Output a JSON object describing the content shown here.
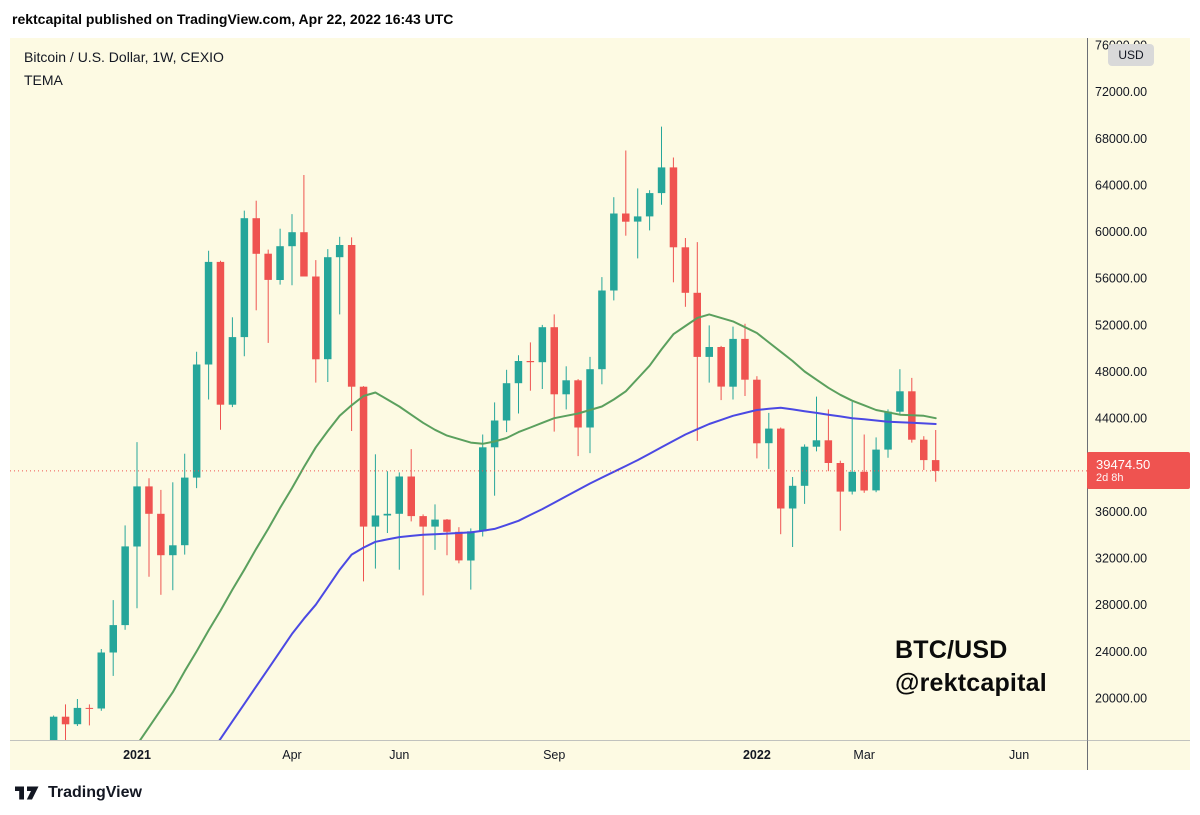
{
  "header": {
    "text": "rektcapital published on TradingView.com, Apr 22, 2022 16:43 UTC"
  },
  "legend": {
    "symbol": "Bitcoin / U.S. Dollar, 1W, CEXIO",
    "indicator": "TEMA"
  },
  "watermark": {
    "line1": "BTC/USD",
    "line2": "@rektcapital"
  },
  "price_axis": {
    "currency": "USD"
  },
  "last_price": {
    "price": "39474.50",
    "countdown": "2d 8h"
  },
  "footer": {
    "brand": "TradingView"
  },
  "colors": {
    "background": "#FDFAE3",
    "up": "#26A69A",
    "down": "#EF5350",
    "text": "#131722",
    "separator": "#6b6e76",
    "axis_line": "#9a9da6",
    "label_red": "#EF5350"
  },
  "chart_data": {
    "type": "candlestick",
    "title": "Bitcoin / U.S. Dollar, 1W, CEXIO",
    "exchange": "CEXIO",
    "timeframe": "1W",
    "indicator": "TEMA",
    "start_week": "2020-11-16",
    "ylim": [
      16400,
      76600
    ],
    "y_ticks": [
      20000,
      24000,
      28000,
      32000,
      36000,
      40000,
      44000,
      48000,
      52000,
      56000,
      60000,
      64000,
      68000,
      72000,
      76000
    ],
    "x_labels": [
      {
        "text": "2021",
        "week": 7,
        "bold": true
      },
      {
        "text": "Apr",
        "week": 20,
        "bold": false
      },
      {
        "text": "Jun",
        "week": 29,
        "bold": false
      },
      {
        "text": "Sep",
        "week": 42,
        "bold": false
      },
      {
        "text": "2022",
        "week": 59,
        "bold": true
      },
      {
        "text": "Mar",
        "week": 68,
        "bold": false
      },
      {
        "text": "Jun",
        "week": 81,
        "bold": false
      }
    ],
    "last_price": {
      "value": 39474.5,
      "display": "39474.50",
      "countdown": "2d 8h"
    },
    "candles": {
      "columns": [
        "open",
        "high",
        "low",
        "close"
      ],
      "rows": [
        [
          15950,
          18500,
          15750,
          18400
        ],
        [
          18400,
          19450,
          16200,
          17750
        ],
        [
          17750,
          19920,
          17600,
          19150
        ],
        [
          19150,
          19450,
          17650,
          19100
        ],
        [
          19100,
          24200,
          18900,
          23900
        ],
        [
          23900,
          28400,
          21900,
          26250
        ],
        [
          26250,
          34800,
          25850,
          33000
        ],
        [
          33000,
          41950,
          27700,
          38150
        ],
        [
          38150,
          38850,
          30400,
          35800
        ],
        [
          35800,
          37850,
          28850,
          32250
        ],
        [
          32250,
          38500,
          29250,
          33100
        ],
        [
          33100,
          40950,
          32300,
          38900
        ],
        [
          38900,
          49700,
          38000,
          48600
        ],
        [
          48600,
          58350,
          45600,
          57400
        ],
        [
          57400,
          57500,
          43000,
          45150
        ],
        [
          45150,
          52650,
          44950,
          50950
        ],
        [
          50950,
          61800,
          49300,
          61150
        ],
        [
          61150,
          62650,
          53250,
          58100
        ],
        [
          58100,
          58450,
          50450,
          55850
        ],
        [
          55850,
          60250,
          55450,
          58750
        ],
        [
          58750,
          61500,
          55400,
          59950
        ],
        [
          59950,
          64850,
          59550,
          56150
        ],
        [
          56150,
          57550,
          47050,
          49050
        ],
        [
          49050,
          58500,
          47100,
          57800
        ],
        [
          57800,
          59550,
          52900,
          58850
        ],
        [
          58850,
          59500,
          42900,
          46700
        ],
        [
          46700,
          46750,
          30000,
          34700
        ],
        [
          34700,
          40900,
          31100,
          35650
        ],
        [
          35650,
          39450,
          34150,
          35800
        ],
        [
          35800,
          39350,
          31000,
          39000
        ],
        [
          39000,
          41350,
          35150,
          35600
        ],
        [
          35600,
          35750,
          28800,
          34700
        ],
        [
          34700,
          36600,
          32700,
          35300
        ],
        [
          35300,
          35350,
          32250,
          34250
        ],
        [
          34250,
          34650,
          31550,
          31800
        ],
        [
          31800,
          34550,
          29300,
          34300
        ],
        [
          34300,
          42600,
          33850,
          41500
        ],
        [
          41500,
          45350,
          37350,
          43800
        ],
        [
          43800,
          48150,
          42800,
          47000
        ],
        [
          47000,
          49400,
          44400,
          48900
        ],
        [
          48900,
          50500,
          46350,
          48800
        ],
        [
          48800,
          52000,
          46500,
          51800
        ],
        [
          51800,
          52900,
          42850,
          46050
        ],
        [
          46050,
          48450,
          44750,
          47250
        ],
        [
          47250,
          47350,
          40750,
          43200
        ],
        [
          43200,
          49250,
          41000,
          48200
        ],
        [
          48200,
          56100,
          46900,
          54950
        ],
        [
          54950,
          62950,
          54100,
          61550
        ],
        [
          61550,
          66950,
          59650,
          60850
        ],
        [
          60850,
          63700,
          57700,
          61300
        ],
        [
          61300,
          63550,
          60100,
          63300
        ],
        [
          63300,
          69000,
          62300,
          65500
        ],
        [
          65500,
          66350,
          55650,
          58650
        ],
        [
          58650,
          59450,
          53550,
          54750
        ],
        [
          54750,
          59100,
          42050,
          49250
        ],
        [
          49250,
          51950,
          47050,
          50100
        ],
        [
          50100,
          50200,
          45550,
          46700
        ],
        [
          46700,
          51850,
          45600,
          50800
        ],
        [
          50800,
          52100,
          45900,
          47300
        ],
        [
          47300,
          47600,
          40550,
          41850
        ],
        [
          41850,
          44450,
          39650,
          43100
        ],
        [
          43100,
          43200,
          34050,
          36250
        ],
        [
          36250,
          38950,
          32950,
          38200
        ],
        [
          38200,
          41750,
          36650,
          41550
        ],
        [
          41550,
          45850,
          41150,
          42100
        ],
        [
          42100,
          44750,
          39450,
          40150
        ],
        [
          40150,
          40350,
          34350,
          37700
        ],
        [
          37700,
          45400,
          37450,
          39400
        ],
        [
          39400,
          42600,
          37600,
          37800
        ],
        [
          37800,
          42350,
          37650,
          41300
        ],
        [
          41300,
          44750,
          40600,
          44550
        ],
        [
          44550,
          48200,
          44250,
          46300
        ],
        [
          46300,
          47450,
          41900,
          42150
        ],
        [
          42150,
          42450,
          39550,
          40400
        ],
        [
          40400,
          42980,
          38550,
          39474.5
        ]
      ]
    },
    "overlays": [
      {
        "name": "tema-green",
        "color": "#5BA05E",
        "values": [
          null,
          null,
          null,
          null,
          null,
          null,
          14500,
          16000,
          17500,
          19000,
          20500,
          22300,
          24000,
          25800,
          27500,
          29300,
          31000,
          32800,
          34500,
          36300,
          38000,
          39800,
          41500,
          42900,
          44200,
          45100,
          45900,
          46200,
          45600,
          45000,
          44300,
          43600,
          43000,
          42500,
          42200,
          41900,
          41800,
          42000,
          42300,
          42800,
          43200,
          43600,
          44000,
          44200,
          44400,
          44700,
          45000,
          45600,
          46300,
          47400,
          48500,
          49900,
          51200,
          51900,
          52600,
          52900,
          52600,
          52300,
          51800,
          51300,
          50500,
          49700,
          48900,
          48000,
          47300,
          46600,
          46000,
          45500,
          45100,
          44700,
          44500,
          44300,
          44250,
          44200,
          44000
        ]
      },
      {
        "name": "tema-blue",
        "color": "#4B49E3",
        "values": [
          null,
          null,
          null,
          null,
          null,
          null,
          null,
          null,
          null,
          null,
          null,
          null,
          13500,
          15000,
          16500,
          18000,
          19500,
          21000,
          22500,
          24000,
          25500,
          26800,
          28000,
          29500,
          31000,
          32300,
          32900,
          33400,
          33600,
          33800,
          33900,
          34000,
          34050,
          34100,
          34150,
          34200,
          34350,
          34500,
          34850,
          35200,
          35700,
          36200,
          36750,
          37300,
          37850,
          38400,
          38900,
          39400,
          39900,
          40400,
          40950,
          41500,
          42050,
          42600,
          43050,
          43500,
          43850,
          44200,
          44450,
          44700,
          44800,
          44900,
          44750,
          44600,
          44450,
          44300,
          44150,
          44000,
          43900,
          43800,
          43700,
          43650,
          43600,
          43550,
          43500
        ]
      }
    ]
  }
}
